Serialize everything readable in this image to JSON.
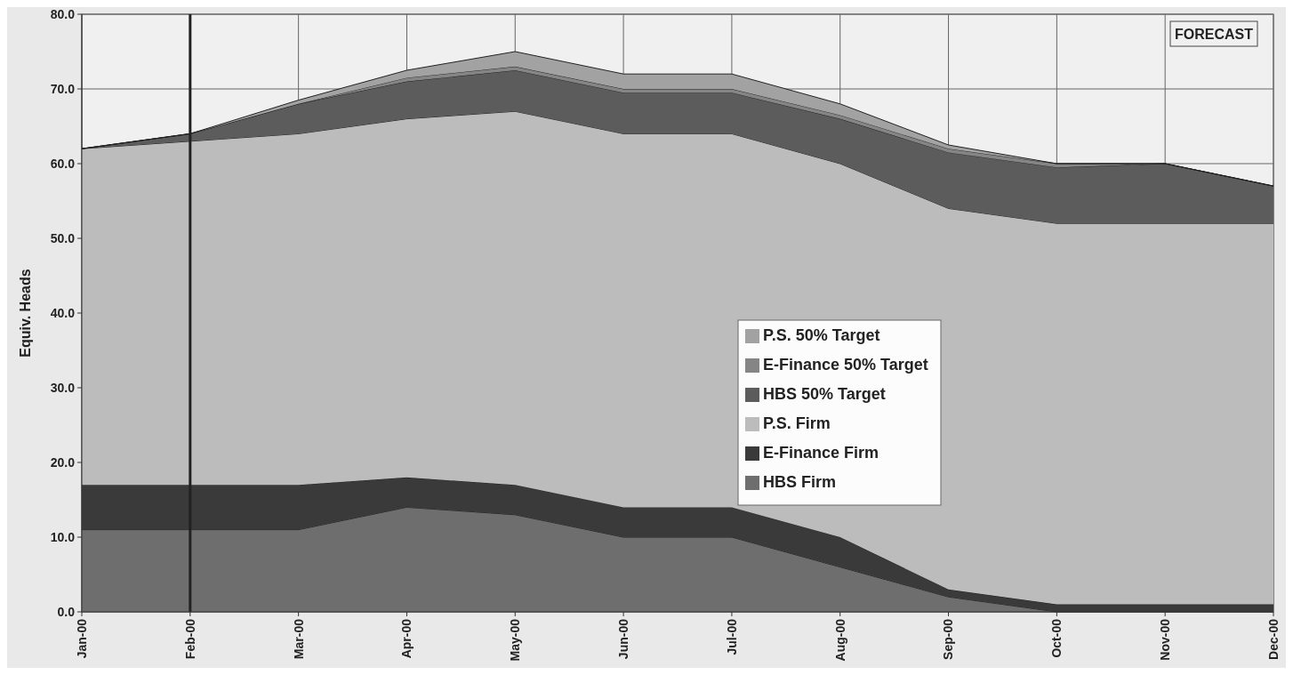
{
  "chart_data": {
    "type": "area",
    "stacked": true,
    "ylabel": "Equiv. Heads",
    "categories": [
      "Jan-00",
      "Feb-00",
      "Mar-00",
      "Apr-00",
      "May-00",
      "Jun-00",
      "Jul-00",
      "Aug-00",
      "Sep-00",
      "Oct-00",
      "Nov-00",
      "Dec-00"
    ],
    "series": [
      {
        "name": "HBS Firm",
        "color": "#6e6e6e",
        "values": [
          11,
          11,
          11,
          14,
          13,
          10,
          10,
          6,
          2,
          0,
          0,
          0
        ]
      },
      {
        "name": "E-Finance Firm",
        "color": "#3a3a3a",
        "values": [
          6,
          6,
          6,
          4,
          4,
          4,
          4,
          4,
          1,
          1,
          1,
          1
        ]
      },
      {
        "name": "P.S. Firm",
        "color": "#bcbcbc",
        "values": [
          45,
          46,
          47,
          48,
          50,
          50,
          50,
          50,
          51,
          51,
          51,
          51
        ]
      },
      {
        "name": "HBS 50% Target",
        "color": "#5c5c5c",
        "values": [
          0,
          1,
          4,
          5,
          5.5,
          5.5,
          5.5,
          6,
          7.5,
          7.5,
          8,
          5
        ]
      },
      {
        "name": "E-Finance 50% Target",
        "color": "#858585",
        "values": [
          0,
          0,
          0,
          0.5,
          0.5,
          0.5,
          0.5,
          0.5,
          0.5,
          0.5,
          0,
          0
        ]
      },
      {
        "name": "P.S. 50% Target",
        "color": "#a2a2a2",
        "values": [
          0,
          0,
          0.5,
          1,
          2,
          2,
          2,
          1.5,
          0.5,
          0,
          0,
          0
        ]
      }
    ],
    "ylim": [
      0,
      80
    ],
    "yticks": [
      {
        "value": 0,
        "label": "0.0"
      },
      {
        "value": 10,
        "label": "10.0"
      },
      {
        "value": 20,
        "label": "20.0"
      },
      {
        "value": 30,
        "label": "30.0"
      },
      {
        "value": 40,
        "label": "40.0"
      },
      {
        "value": 50,
        "label": "50.0"
      },
      {
        "value": 60,
        "label": "60.0"
      },
      {
        "value": 70,
        "label": "70.0"
      },
      {
        "value": 80,
        "label": "80.0"
      }
    ],
    "grid": true,
    "legend": "center",
    "ref_lines": [
      {
        "axis": "x",
        "value": "Feb-00",
        "color": "#222222"
      }
    ],
    "annotations": [
      "FORECAST"
    ]
  }
}
